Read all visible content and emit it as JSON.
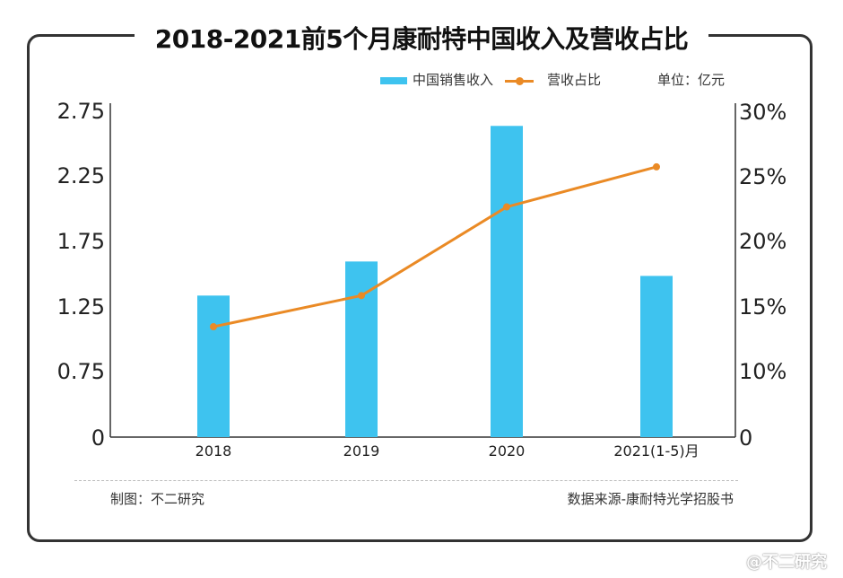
{
  "title": "2018-2021前5个月康耐特中国收入及营收占比",
  "legend": {
    "bar_label": "中国销售收入",
    "line_label": "营收占比"
  },
  "unit": "单位：亿元",
  "footer": {
    "left": "制图：不二研究",
    "right": "数据来源-康耐特光学招股书"
  },
  "watermark": "@不二研究",
  "colors": {
    "bar": "#3ec3ef",
    "line": "#ea8a25"
  },
  "chart_data": {
    "type": "bar",
    "categories": [
      "2018",
      "2019",
      "2020",
      "2021(1-5)月"
    ],
    "series": [
      {
        "name": "中国销售收入",
        "type": "bar",
        "axis": "left",
        "values": [
          1.33,
          1.59,
          2.63,
          1.48
        ]
      },
      {
        "name": "营收占比",
        "type": "line",
        "axis": "right",
        "values": [
          13.4,
          15.8,
          22.6,
          25.7
        ]
      }
    ],
    "y_left": {
      "ticks": [
        "0",
        "0.75",
        "1.25",
        "1.75",
        "2.25",
        "2.75"
      ],
      "tick_values": [
        0,
        0.75,
        1.25,
        1.75,
        2.25,
        2.75
      ]
    },
    "y_right": {
      "ticks": [
        "0",
        "10%",
        "15%",
        "20%",
        "25%",
        "30%"
      ],
      "tick_values": [
        0,
        10,
        15,
        20,
        25,
        30
      ]
    },
    "grid": false,
    "legend_position": "top-right"
  }
}
